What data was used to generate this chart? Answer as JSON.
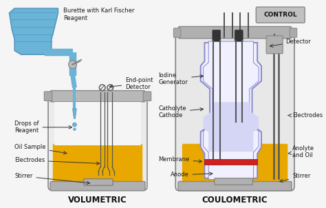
{
  "bg_color": "#f5f5f5",
  "title_vol": "VOLUMETRIC",
  "title_coul": "COULOMETRIC",
  "labels_vol": {
    "burette": "Burette with Karl Fischer\nReagent",
    "endpoint": "End-point\nDetector",
    "drops": "Drops of\nReagent",
    "oil": "Oil Sample",
    "electrodes": "Electrodes",
    "stirrer": "Stirrer"
  },
  "labels_coul": {
    "control": "CONTROL",
    "detector": "Detector",
    "iodine": "Iodine\nGenerator",
    "catholyte": "Catholyte\nCathode",
    "membrane": "Membrane",
    "anode": "Anode",
    "electrodes": "Electrodes",
    "anolyte": "Anolyte\nand Oil",
    "stirrer": "Stirrer"
  },
  "colors": {
    "burette_blue": "#6ab4d8",
    "burette_dark": "#4a90b8",
    "oil_yellow": "#e8a800",
    "vessel_gray": "#b0b0b0",
    "vessel_light": "#e5e5e5",
    "vessel_outline": "#888888",
    "collar_gray": "#aaaaaa",
    "electrode_dark": "#444444",
    "stirrer_gray": "#999999",
    "drop_blue": "#6ab4d8",
    "inner_vessel_fill": "#eeeeff",
    "inner_vessel_outline": "#8888cc",
    "catholyte_fill": "#d8d8f0",
    "membrane_red": "#cc2222",
    "control_box": "#b8b8b8",
    "detector_box": "#aaaaaa",
    "text_color": "#1a1a1a",
    "arrow_color": "#333333",
    "white": "#ffffff",
    "needle_blue": "#6ab4d8",
    "tube_dark": "#555555"
  }
}
